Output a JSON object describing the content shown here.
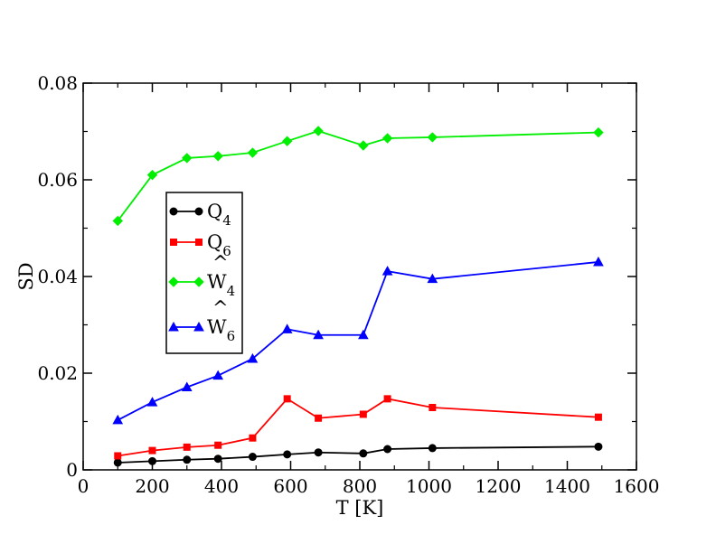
{
  "chart_data": {
    "type": "line",
    "title": "",
    "xlabel": "T [K]",
    "ylabel": "SD",
    "xlim": [
      0,
      1600
    ],
    "ylim": [
      0,
      0.08
    ],
    "xticks": [
      0,
      200,
      400,
      600,
      800,
      1000,
      1200,
      1400,
      1600
    ],
    "xtick_labels": [
      "0",
      "200",
      "400",
      "600",
      "800",
      "1000",
      "1200",
      "1400",
      "1600"
    ],
    "yticks": [
      0,
      0.02,
      0.04,
      0.06,
      0.08
    ],
    "ytick_labels": [
      "0",
      "0.02",
      "0.04",
      "0.06",
      "0.08"
    ],
    "grid": false,
    "legend_position": "upper-left inside",
    "x": [
      100,
      200,
      300,
      390,
      490,
      590,
      680,
      810,
      880,
      1010,
      1490
    ],
    "series": [
      {
        "name": "Q",
        "name_sub": "4",
        "hat": false,
        "color": "#000000",
        "marker": "circle",
        "values": [
          0.0015,
          0.0018,
          0.0021,
          0.0023,
          0.0027,
          0.0032,
          0.0036,
          0.0034,
          0.0043,
          0.0045,
          0.0048
        ]
      },
      {
        "name": "Q",
        "name_sub": "6",
        "hat": false,
        "color": "#ff0000",
        "marker": "square",
        "values": [
          0.0029,
          0.004,
          0.0047,
          0.0051,
          0.0066,
          0.0147,
          0.0107,
          0.0115,
          0.0147,
          0.0129,
          0.0109
        ]
      },
      {
        "name": "W",
        "name_sub": "4",
        "hat": true,
        "color": "#00ee00",
        "marker": "diamond",
        "values": [
          0.0515,
          0.061,
          0.0645,
          0.0649,
          0.0656,
          0.068,
          0.0701,
          0.0671,
          0.0686,
          0.0688,
          0.0698
        ]
      },
      {
        "name": "W",
        "name_sub": "6",
        "hat": true,
        "color": "#0000ff",
        "marker": "triangle",
        "values": [
          0.0103,
          0.014,
          0.0171,
          0.0195,
          0.023,
          0.0291,
          0.0279,
          0.0279,
          0.0411,
          0.0395,
          0.043
        ]
      }
    ]
  }
}
